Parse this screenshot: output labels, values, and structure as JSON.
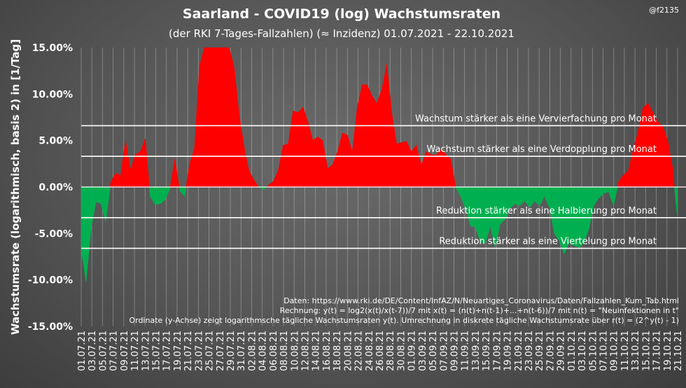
{
  "header": {
    "title": "Saarland - COVID19  (log) Wachstumsraten",
    "subtitle": "(der RKI 7-Tages-Fallzahlen) (≈ Inzidenz) 01.07.2021 - 22.10.2021",
    "handle": "@f2135"
  },
  "colors": {
    "positive": "#ff0000",
    "negative": "#00b050",
    "grid": "#ffffff",
    "text": "#ffffff"
  },
  "chart_data": {
    "type": "area",
    "title": "Saarland - COVID19  (log) Wachstumsraten",
    "subtitle": "(der RKI 7-Tages-Fallzahlen) (≈ Inzidenz) 01.07.2021 - 22.10.2021",
    "xlabel": "",
    "ylabel": "Wachstumsrate (logarithmisch, basis 2) in [1/Tag]",
    "ylim": [
      -15,
      15
    ],
    "yticks": [
      -15,
      -10,
      -5,
      0,
      5,
      10,
      15
    ],
    "ytick_labels": [
      "-15.00%",
      "-10.00%",
      "-5.00%",
      "0.00%",
      "5.00%",
      "10.00%",
      "15.00%"
    ],
    "xtick_labels": [
      "01.07.21",
      "03.07.21",
      "05.07.21",
      "07.07.21",
      "09.07.21",
      "11.07.21",
      "13.07.21",
      "15.07.21",
      "17.07.21",
      "19.07.21",
      "21.07.21",
      "23.07.21",
      "25.07.21",
      "27.07.21",
      "29.07.21",
      "31.07.21",
      "02.08.21",
      "04.08.21",
      "06.08.21",
      "08.08.21",
      "10.08.21",
      "12.08.21",
      "14.08.21",
      "16.08.21",
      "18.08.21",
      "20.08.21",
      "22.08.21",
      "24.08.21",
      "26.08.21",
      "28.08.21",
      "30.08.21",
      "01.09.21",
      "03.09.21",
      "05.09.21",
      "07.09.21",
      "09.09.21",
      "11.09.21",
      "13.09.21",
      "15.09.21",
      "17.09.21",
      "19.09.21",
      "21.09.21",
      "23.09.21",
      "25.09.21",
      "27.09.21",
      "29.09.21",
      "01.10.21",
      "03.10.21",
      "05.10.21",
      "07.10.21",
      "09.10.21",
      "11.10.21",
      "13.10.21",
      "15.10.21",
      "17.10.21",
      "19.10.21",
      "21.10.21"
    ],
    "grid": "vertical",
    "reference_lines": [
      {
        "y": 6.6,
        "label": "Wachstum stärker als eine Vervierfachung pro Monat"
      },
      {
        "y": 3.3,
        "label": "Wachstum stärker als eine Verdopplung pro Monat"
      },
      {
        "y": -3.3,
        "label": "Reduktion stärker als eine Halbierung pro Monat"
      },
      {
        "y": -6.6,
        "label": "Reduktion stärker als eine Viertelung pro Monat"
      }
    ],
    "series": [
      {
        "values": [
          -6.8,
          -10.2,
          -4.5,
          -1.6,
          -1.8,
          -3.7,
          0.5,
          1.5,
          1.2,
          5.0,
          1.8,
          3.5,
          3.8,
          5.2,
          -1.0,
          -1.9,
          -1.8,
          -1.4,
          -0.2,
          3.0,
          -0.4,
          -1.0,
          2.5,
          4.2,
          13.0,
          15.0,
          15.0,
          15.0,
          15.0,
          15.0,
          15.0,
          13.0,
          8.0,
          4.5,
          1.8,
          0.8,
          0.0,
          -0.3,
          0.2,
          0.6,
          1.8,
          4.5,
          4.6,
          8.2,
          8.0,
          8.6,
          7.0,
          5.0,
          5.4,
          5.0,
          2.0,
          2.4,
          3.8,
          5.8,
          5.6,
          3.8,
          8.5,
          11.0,
          11.0,
          9.8,
          9.0,
          10.5,
          13.2,
          8.0,
          4.6,
          4.8,
          4.9,
          3.8,
          4.5,
          2.3,
          3.8,
          3.5,
          3.4,
          4.0,
          3.5,
          3.0,
          -0.1,
          -1.0,
          -2.3,
          -4.2,
          -4.3,
          -6.0,
          -6.0,
          -4.2,
          -6.5,
          -4.0,
          -3.5,
          -2.3,
          -1.8,
          -2.0,
          -1.5,
          -2.2,
          -1.5,
          -2.0,
          -1.0,
          -2.2,
          -5.0,
          -5.8,
          -7.2,
          -6.0,
          -6.3,
          -6.5,
          -6.0,
          -4.5,
          -2.0,
          -1.2,
          -0.7,
          -0.5,
          -2.0,
          0.5,
          1.3,
          1.7,
          4.0,
          6.0,
          8.5,
          9.0,
          8.0,
          7.0,
          6.5,
          5.0,
          2.0,
          -3.5
        ]
      }
    ],
    "annotations": [
      "Daten: https://www.rki.de/DE/Content/InfAZ/N/Neuartiges_Coronavirus/Daten/Fallzahlen_Kum_Tab.html",
      "Rechnung: y(t) = log2(x(t)/x(t-7))/7 mit x(t) = (n(t)+n(t-1)+...+n(t-6))/7 mit n(t) = \"Neuinfektionen in t\"",
      "Ordinate (y-Achse) zeigt logarithmsche tägliche Wachstumsraten y(t). Umrechnung in diskrete tägliche Wachstumsrate über r(t) = (2^y(t) - 1)"
    ]
  }
}
